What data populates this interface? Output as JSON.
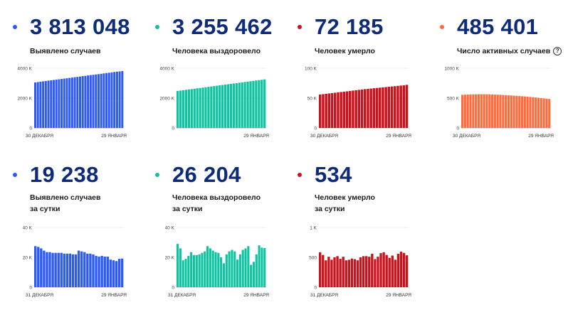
{
  "cards": [
    {
      "value": "3 813 048",
      "label1": "Выявлено случаев",
      "label2": "",
      "color": "#2f5bf5",
      "help": false
    },
    {
      "value": "3 255 462",
      "label1": "Человека выздоровело",
      "label2": "",
      "color": "#0fc3a0",
      "help": false
    },
    {
      "value": "72 185",
      "label1": "Человек умерло",
      "label2": "",
      "color": "#c8141e",
      "help": false
    },
    {
      "value": "485 401",
      "label1": "Число активных случаев",
      "label2": "",
      "color": "#ff6b3d",
      "help": true
    },
    {
      "value": "19 238",
      "label1": "Выявлено случаев",
      "label2": "за сутки",
      "color": "#2f5bf5",
      "help": false
    },
    {
      "value": "26 204",
      "label1": "Человека выздоровело",
      "label2": "за сутки",
      "color": "#0fc3a0",
      "help": false
    },
    {
      "value": "534",
      "label1": "Человек умерло",
      "label2": "за сутки",
      "color": "#c8141e",
      "help": false
    }
  ],
  "help_glyph": "?",
  "chart_data": [
    {
      "type": "bar",
      "title": "Выявлено случаев",
      "x_start": "30 ДЕКАБРЯ",
      "x_end": "29 ЯНВАРЯ",
      "ylim": [
        0,
        4000
      ],
      "ticks": [
        "0",
        "2000 K",
        "4000 K"
      ],
      "tick_values": [
        0,
        2000,
        4000
      ],
      "values": [
        3050,
        3075,
        3100,
        3125,
        3145,
        3170,
        3190,
        3215,
        3240,
        3260,
        3285,
        3305,
        3330,
        3355,
        3375,
        3400,
        3420,
        3445,
        3470,
        3490,
        3515,
        3540,
        3560,
        3585,
        3605,
        3630,
        3655,
        3680,
        3700,
        3725,
        3750,
        3770,
        3790,
        3813
      ]
    },
    {
      "type": "bar",
      "title": "Человека выздоровело",
      "x_start": "",
      "x_end": "29 ЯНВАРЯ",
      "ylim": [
        0,
        4000
      ],
      "ticks": [
        "0",
        "2000 K",
        "4000 K"
      ],
      "tick_values": [
        0,
        2000,
        4000
      ],
      "values": [
        2480,
        2505,
        2530,
        2555,
        2580,
        2605,
        2630,
        2655,
        2680,
        2705,
        2730,
        2755,
        2780,
        2805,
        2830,
        2855,
        2880,
        2905,
        2930,
        2955,
        2980,
        3005,
        3030,
        3055,
        3080,
        3105,
        3130,
        3155,
        3180,
        3205,
        3225,
        3255
      ]
    },
    {
      "type": "bar",
      "title": "Человек умерло",
      "x_start": "30 ДЕКАБРЯ",
      "x_end": "29 ЯНВАРЯ",
      "ylim": [
        0,
        100
      ],
      "ticks": [
        "0",
        "50 K",
        "100 K"
      ],
      "tick_values": [
        0,
        50,
        100
      ],
      "values": [
        56,
        56.6,
        57.2,
        57.8,
        58.4,
        59,
        59.6,
        60.2,
        60.8,
        61.4,
        62,
        62.6,
        63.2,
        63.8,
        64.4,
        65,
        65.5,
        66,
        66.5,
        67,
        67.5,
        68,
        68.5,
        69,
        69.5,
        70,
        70.5,
        71,
        71.5,
        72.2
      ]
    },
    {
      "type": "bar",
      "title": "Число активных случаев",
      "x_start": "30 ДЕКАБРЯ",
      "x_end": "29 ЯНВАРЯ",
      "ylim": [
        0,
        1000
      ],
      "ticks": [
        "0",
        "500 K",
        "1000 K"
      ],
      "tick_values": [
        0,
        500,
        1000
      ],
      "values": [
        555,
        558,
        560,
        562,
        563,
        564,
        565,
        565,
        565,
        564,
        563,
        562,
        560,
        558,
        556,
        553,
        550,
        547,
        544,
        541,
        538,
        535,
        532,
        528,
        524,
        520,
        515,
        510,
        505,
        500,
        495,
        490,
        485
      ]
    },
    {
      "type": "bar",
      "title": "Выявлено случаев за сутки",
      "x_start": "31 ДЕКАБРЯ",
      "x_end": "29 ЯНВАРЯ",
      "ylim": [
        0,
        40
      ],
      "ticks": [
        "0",
        "20 K",
        "40 K"
      ],
      "tick_values": [
        0,
        20,
        40
      ],
      "values": [
        27.5,
        27,
        26,
        24.5,
        23.5,
        23.5,
        23,
        23,
        23,
        23,
        22.5,
        22.5,
        22.5,
        22,
        22,
        24.5,
        24,
        23.5,
        22.5,
        22.5,
        22,
        21,
        20.5,
        21,
        20.5,
        20.5,
        18.5,
        18,
        17.5,
        19,
        19.2
      ]
    },
    {
      "type": "bar",
      "title": "Человека выздоровело за сутки",
      "x_start": "31 ДЕКАБРЯ",
      "x_end": "29 ЯНВАРЯ",
      "ylim": [
        0,
        40
      ],
      "ticks": [
        "0",
        "20 K",
        "40 K"
      ],
      "tick_values": [
        0,
        20,
        40
      ],
      "values": [
        29,
        26,
        18,
        19,
        21,
        23.5,
        21.5,
        21.5,
        22,
        23,
        24,
        27.5,
        26,
        24.5,
        23.5,
        23,
        20,
        16,
        22,
        24,
        25,
        24,
        18.5,
        22,
        25,
        26,
        27.5,
        15,
        17,
        22,
        28,
        26.5,
        26.2
      ]
    },
    {
      "type": "bar",
      "title": "Человек умерло за сутки",
      "x_start": "31 ДЕКАБРЯ",
      "x_end": "29 ЯНВАРЯ",
      "ylim": [
        0,
        1000
      ],
      "ticks": [
        "0",
        "500",
        "1 K"
      ],
      "tick_values": [
        0,
        500,
        1000
      ],
      "values": [
        585,
        540,
        450,
        510,
        460,
        500,
        520,
        475,
        510,
        450,
        460,
        480,
        470,
        450,
        500,
        520,
        520,
        510,
        560,
        470,
        510,
        570,
        585,
        540,
        490,
        530,
        460,
        560,
        595,
        575,
        534
      ]
    }
  ]
}
